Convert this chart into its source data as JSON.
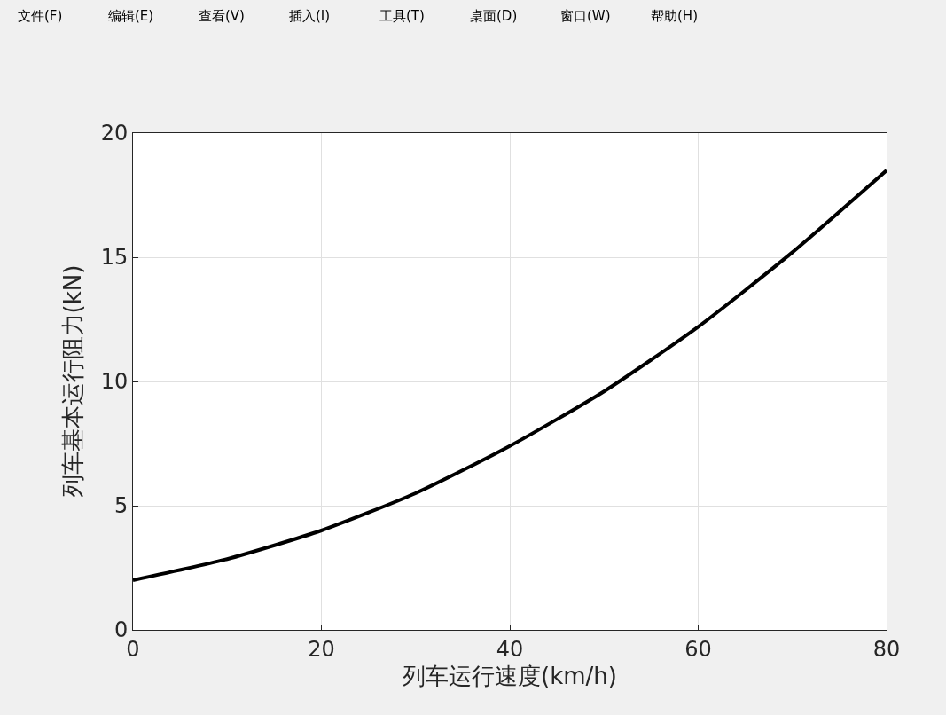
{
  "chart_data": {
    "type": "line",
    "xlabel": "列车运行速度(km/h)",
    "ylabel": "列车基本运行阻力(kN)",
    "annotations": [
      "文件(F)",
      "编辑(E)",
      "查看(V)",
      "插入(I)",
      "工具(T)",
      "桌面(D)",
      "窗口(W)",
      "帮助(H)"
    ],
    "x": [
      0,
      10,
      20,
      30,
      40,
      50,
      60,
      70,
      80
    ],
    "series": [
      {
        "color": "#000000",
        "values": [
          2.0,
          2.85,
          4.0,
          5.5,
          7.4,
          9.6,
          12.2,
          15.2,
          18.5
        ]
      }
    ],
    "xlim": [
      0,
      80
    ],
    "xticks": [
      0,
      20,
      40,
      60,
      80
    ],
    "ylim": [
      0,
      20
    ],
    "yticks": [
      0,
      5,
      10,
      15,
      20
    ],
    "grid": true,
    "marker": "none",
    "line_style": "solid"
  }
}
